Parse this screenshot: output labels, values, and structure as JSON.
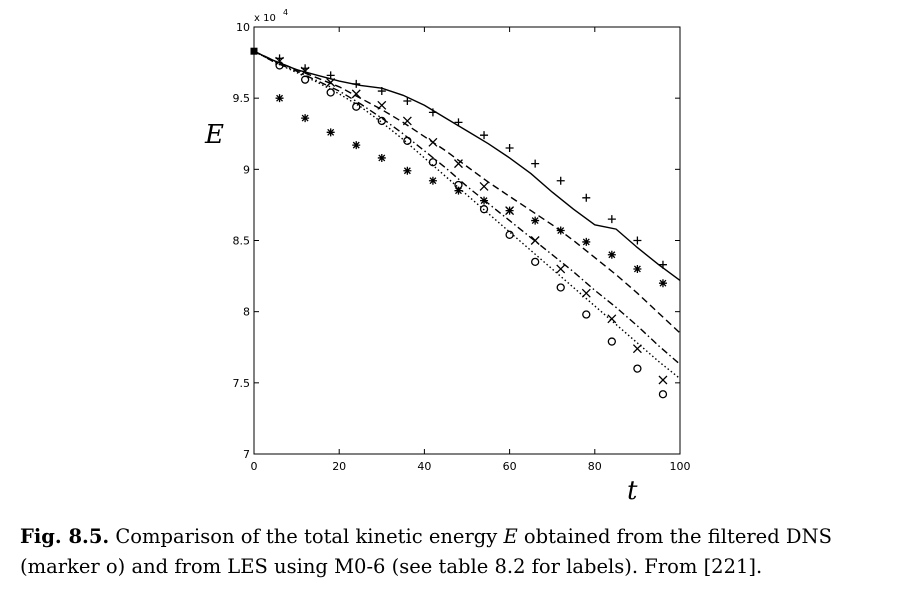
{
  "chart_data": {
    "type": "line",
    "title": "",
    "xlabel": "t",
    "ylabel": "E",
    "y_scale_label": "x 10",
    "y_scale_exponent": "4",
    "xlim": [
      0,
      100
    ],
    "ylim": [
      7,
      10
    ],
    "y_scale_factor": 10000,
    "x_ticks": [
      0,
      20,
      40,
      60,
      80,
      100
    ],
    "x_tick_labels": [
      "0",
      "20",
      "40",
      "60",
      "80",
      "100"
    ],
    "y_ticks": [
      7,
      7.5,
      8,
      8.5,
      9,
      9.5,
      10
    ],
    "y_tick_labels": [
      "7",
      "7.5",
      "8",
      "8.5",
      "9",
      "9.5",
      "10"
    ],
    "grid": false,
    "series": [
      {
        "name": "solid",
        "style": "line-solid",
        "x": [
          0,
          5,
          10,
          15,
          20,
          25,
          30,
          35,
          40,
          45,
          50,
          55,
          60,
          65,
          70,
          75,
          80,
          85,
          90,
          95,
          100
        ],
        "y": [
          9.83,
          9.76,
          9.7,
          9.66,
          9.62,
          9.59,
          9.57,
          9.52,
          9.45,
          9.36,
          9.27,
          9.18,
          9.08,
          8.97,
          8.84,
          8.72,
          8.61,
          8.58,
          8.45,
          8.33,
          8.22
        ]
      },
      {
        "name": "dashed",
        "style": "line-dashed",
        "x": [
          0,
          5,
          10,
          15,
          20,
          25,
          30,
          35,
          40,
          45,
          50,
          55,
          60,
          65,
          70,
          75,
          80,
          85,
          90,
          95,
          100
        ],
        "y": [
          9.83,
          9.76,
          9.7,
          9.64,
          9.58,
          9.5,
          9.42,
          9.33,
          9.23,
          9.13,
          9.02,
          8.91,
          8.81,
          8.71,
          8.61,
          8.5,
          8.38,
          8.26,
          8.13,
          7.99,
          7.85
        ]
      },
      {
        "name": "dash-dot",
        "style": "line-dashdot",
        "x": [
          0,
          5,
          10,
          15,
          20,
          25,
          30,
          35,
          40,
          45,
          50,
          55,
          60,
          65,
          70,
          75,
          80,
          85,
          90,
          95,
          100
        ],
        "y": [
          9.83,
          9.75,
          9.69,
          9.62,
          9.55,
          9.46,
          9.36,
          9.25,
          9.13,
          9.01,
          8.88,
          8.76,
          8.64,
          8.52,
          8.4,
          8.28,
          8.15,
          8.03,
          7.9,
          7.76,
          7.63
        ]
      },
      {
        "name": "dotted",
        "style": "line-dotted",
        "x": [
          0,
          5,
          10,
          15,
          20,
          25,
          30,
          35,
          40,
          45,
          50,
          55,
          60,
          65,
          70,
          75,
          80,
          85,
          90,
          95,
          100
        ],
        "y": [
          9.83,
          9.75,
          9.68,
          9.61,
          9.53,
          9.44,
          9.33,
          9.21,
          9.08,
          8.95,
          8.82,
          8.69,
          8.56,
          8.43,
          8.3,
          8.17,
          8.04,
          7.91,
          7.78,
          7.65,
          7.53
        ]
      },
      {
        "name": "plus",
        "style": "marker-plus",
        "x": [
          6,
          12,
          18,
          24,
          30,
          36,
          42,
          48,
          54,
          60,
          66,
          72,
          78,
          84,
          90,
          96
        ],
        "y": [
          9.78,
          9.71,
          9.66,
          9.6,
          9.55,
          9.48,
          9.4,
          9.33,
          9.24,
          9.15,
          9.04,
          8.92,
          8.8,
          8.65,
          8.5,
          8.33
        ]
      },
      {
        "name": "cross",
        "style": "marker-x",
        "x": [
          6,
          12,
          18,
          24,
          30,
          36,
          42,
          48,
          54,
          60,
          66,
          72,
          78,
          84,
          90,
          96
        ],
        "y": [
          9.76,
          9.69,
          9.61,
          9.53,
          9.45,
          9.34,
          9.19,
          9.04,
          8.88,
          8.71,
          8.5,
          8.3,
          8.13,
          7.95,
          7.74,
          7.52
        ]
      },
      {
        "name": "circle (filtered DNS)",
        "style": "marker-o",
        "x": [
          6,
          12,
          18,
          24,
          30,
          36,
          42,
          48,
          54,
          60,
          66,
          72,
          78,
          84,
          90,
          96
        ],
        "y": [
          9.73,
          9.63,
          9.54,
          9.44,
          9.34,
          9.2,
          9.05,
          8.89,
          8.72,
          8.54,
          8.35,
          8.17,
          7.98,
          7.79,
          7.6,
          7.42
        ]
      },
      {
        "name": "star",
        "style": "marker-star",
        "x": [
          6,
          12,
          18,
          24,
          30,
          36,
          42,
          48,
          54,
          60,
          66,
          72,
          78,
          84,
          90,
          96
        ],
        "y": [
          9.5,
          9.36,
          9.26,
          9.17,
          9.08,
          8.99,
          8.92,
          8.85,
          8.78,
          8.71,
          8.64,
          8.57,
          8.49,
          8.4,
          8.3,
          8.2
        ]
      },
      {
        "name": "initial",
        "style": "marker-square",
        "x": [
          0
        ],
        "y": [
          9.83
        ]
      }
    ]
  },
  "caption": {
    "fig_number": "Fig. 8.5.",
    "part1": " Comparison of the total kinetic energy ",
    "symbol": "E",
    "part2": " obtained from the filtered DNS (marker o) and from LES using M0-6 (see table 8.2 for labels). From [221]."
  }
}
